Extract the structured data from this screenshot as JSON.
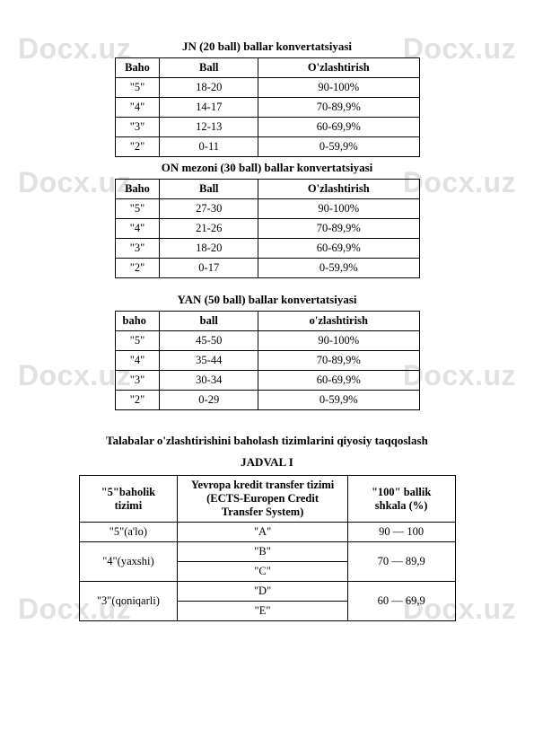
{
  "watermark": "Docx.uz",
  "table1": {
    "title": "JN (20 ball) ballar konvertatsiyasi",
    "headers": [
      "Baho",
      "Ball",
      "O'zlashtirish"
    ],
    "rows": [
      [
        "\"5\"",
        "18-20",
        "90-100%"
      ],
      [
        "\"4\"",
        "14-17",
        "70-89,9%"
      ],
      [
        "\"3\"",
        "12-13",
        "60-69,9%"
      ],
      [
        "\"2\"",
        "0-11",
        "0-59,9%"
      ]
    ]
  },
  "table2": {
    "title": "ON mezoni (30 ball) ballar konvertatsiyasi",
    "headers": [
      "Baho",
      "Ball",
      "O'zlashtirish"
    ],
    "rows": [
      [
        "\"5\"",
        "27-30",
        "90-100%"
      ],
      [
        "\"4\"",
        "21-26",
        "70-89,9%"
      ],
      [
        "\"3\"",
        "18-20",
        "60-69,9%"
      ],
      [
        "\"2\"",
        "0-17",
        "0-59,9%"
      ]
    ]
  },
  "table3": {
    "title": "YAN (50 ball) ballar konvertatsiyasi",
    "headers": [
      "baho",
      "ball",
      "o'zlashtirish"
    ],
    "rows": [
      [
        "\"5\"",
        "45-50",
        "90-100%"
      ],
      [
        "\"4\"",
        "35-44",
        "70-89,9%"
      ],
      [
        "\"3\"",
        "30-34",
        "60-69,9%"
      ],
      [
        "\"2\"",
        "0-29",
        "0-59,9%"
      ]
    ]
  },
  "section": {
    "title": "Talabalar o'zlashtirishini baholash tizimlarini qiyosiy taqqoslash",
    "subtitle": "JADVAL I"
  },
  "table4": {
    "headers": [
      "\"5\"baholik tizimi",
      "Yevropa kredit transfer tizimi (ECTS-Europen Credit Transfer System)",
      "\"100\" ballik shkala (%)"
    ],
    "row1": [
      "\"5\"(a'lo)",
      "\"A\"",
      "90 — 100"
    ],
    "row2_col1": "\"4\"(yaxshi)",
    "row2_b": "\"B\"",
    "row2_c": "\"C\"",
    "row2_col3": "70 — 89,9",
    "row3_col1": "\"3\"(qoniqarli)",
    "row3_d": "\"D\"",
    "row3_e": "\"E\"",
    "row3_col3": "60 — 69,9"
  }
}
